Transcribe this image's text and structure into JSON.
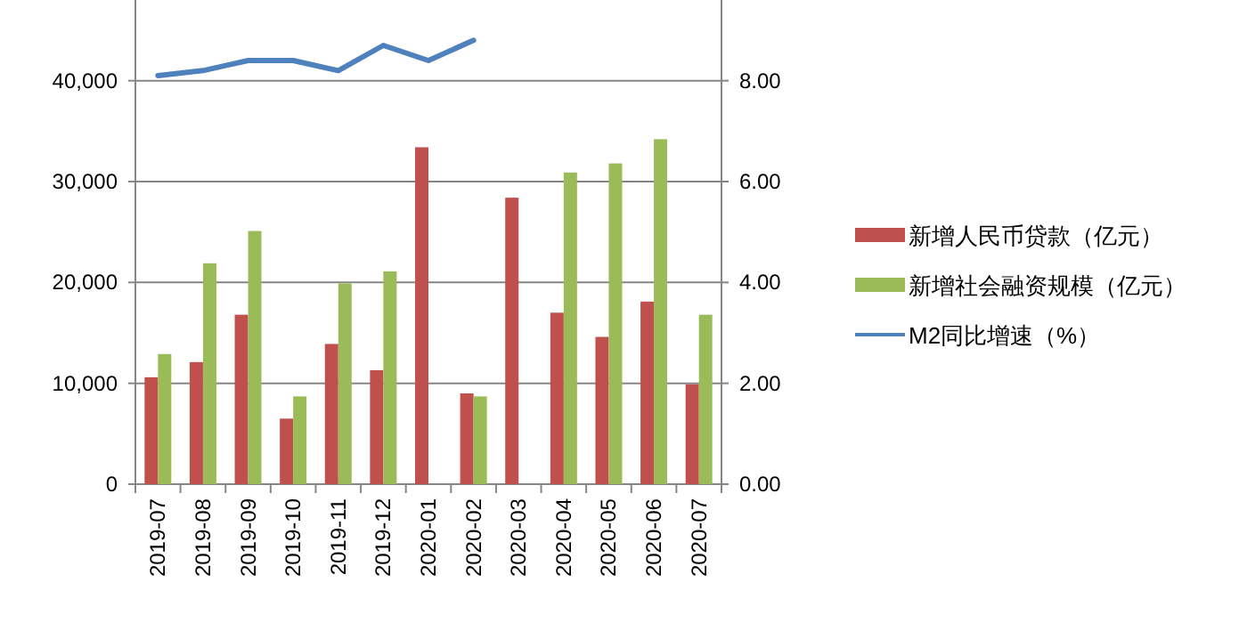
{
  "chart_data": {
    "type": "bar",
    "categories": [
      "2019-07",
      "2019-08",
      "2019-09",
      "2019-10",
      "2019-11",
      "2019-12",
      "2020-01",
      "2020-02",
      "2020-03",
      "2020-04",
      "2020-05",
      "2020-06",
      "2020-07"
    ],
    "series": [
      {
        "name": "新增人民币贷款（亿元）",
        "color": "#c0504d",
        "values": [
          10600,
          12100,
          16800,
          6500,
          13900,
          11300,
          33400,
          9000,
          28400,
          17000,
          14600,
          18100,
          9900
        ]
      },
      {
        "name": "新增社会融资规模（亿元）",
        "color": "#9bbb59",
        "values": [
          12900,
          21900,
          25100,
          8700,
          19900,
          21100,
          null,
          8700,
          null,
          30900,
          31800,
          34200,
          16800
        ]
      },
      {
        "name": "M2同比增速（%）",
        "color": "#4f81bd",
        "type": "line",
        "axis": "y2",
        "values": [
          8.1,
          8.2,
          8.4,
          8.4,
          8.2,
          8.7,
          8.4,
          8.8,
          null,
          null,
          null,
          null,
          null
        ]
      }
    ],
    "ylim": [
      0,
      48000
    ],
    "yticks": [
      0,
      {
        "value": 10000,
        "label": "10,000"
      },
      {
        "value": 20000,
        "label": "20,000"
      },
      {
        "value": 30000,
        "label": "30,000"
      },
      {
        "value": 40000,
        "label": "40,000"
      }
    ],
    "y2lim": [
      0,
      9.6
    ],
    "y2ticks": [
      {
        "value": 0,
        "label": "0.00"
      },
      {
        "value": 2,
        "label": "2.00"
      },
      {
        "value": 4,
        "label": "4.00"
      },
      {
        "value": 6,
        "label": "6.00"
      },
      {
        "value": 8,
        "label": "8.00"
      }
    ],
    "grid": "y",
    "legend": "right",
    "marker": "none"
  }
}
